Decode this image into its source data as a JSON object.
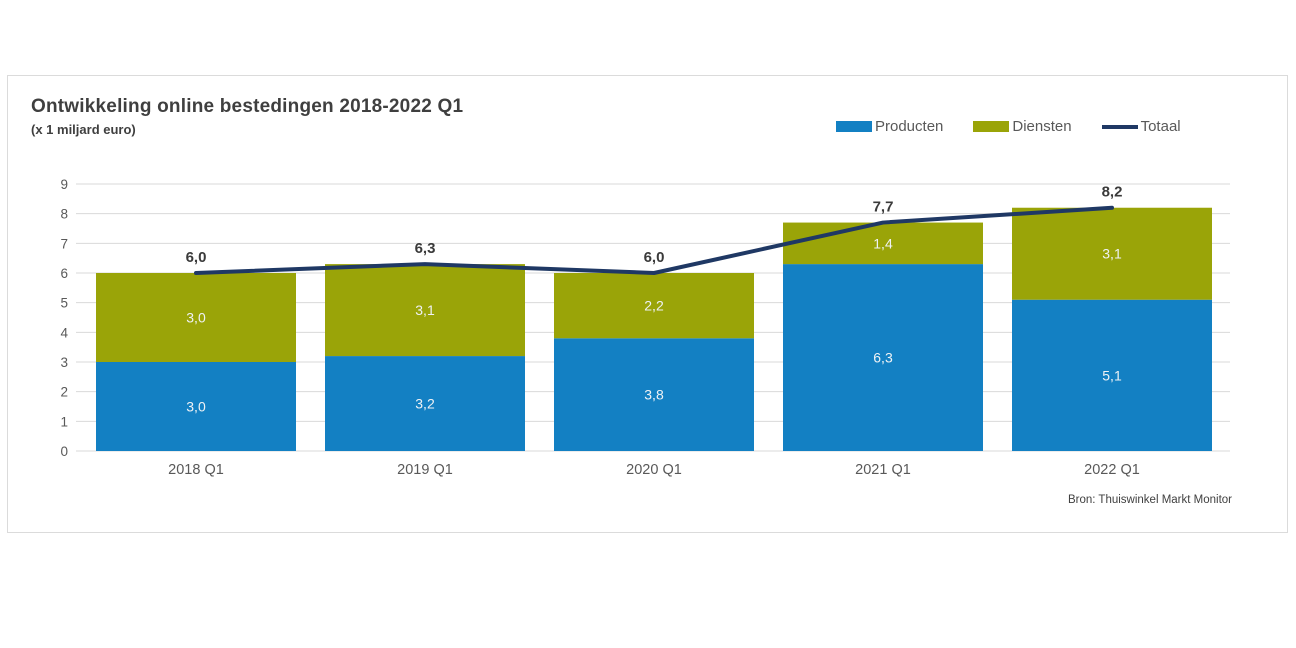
{
  "panel": {
    "title": "Ontwikkeling online bestedingen 2018-2022 Q1",
    "subtitle": "(x 1 miljard euro)",
    "source": "Bron: Thuiswinkel Markt Monitor"
  },
  "chart_data": {
    "type": "bar",
    "stacked": true,
    "grid": true,
    "legend_position": "top-right",
    "title": "Ontwikkeling online bestedingen 2018-2022 Q1",
    "subtitle": "(x 1 miljard euro)",
    "xlabel": "",
    "ylabel": "",
    "ylim": [
      0,
      9
    ],
    "ytick_step": 1,
    "categories": [
      "2018 Q1",
      "2019 Q1",
      "2020 Q1",
      "2021 Q1",
      "2022 Q1"
    ],
    "series": [
      {
        "name": "Producten",
        "type": "bar",
        "color": "#1380c3",
        "values": [
          3.0,
          3.2,
          3.8,
          6.3,
          5.1
        ],
        "labels": [
          "3,0",
          "3,2",
          "3,8",
          "6,3",
          "5,1"
        ]
      },
      {
        "name": "Diensten",
        "type": "bar",
        "color": "#9aa408",
        "values": [
          3.0,
          3.1,
          2.2,
          1.4,
          3.1
        ],
        "labels": [
          "3,0",
          "3,1",
          "2,2",
          "1,4",
          "3,1"
        ]
      },
      {
        "name": "Totaal",
        "type": "line",
        "color": "#1f3864",
        "values": [
          6.0,
          6.3,
          6.0,
          7.7,
          8.2
        ],
        "labels": [
          "6,0",
          "6,3",
          "6,0",
          "7,7",
          "8,2"
        ]
      }
    ],
    "source": "Bron: Thuiswinkel Markt Monitor",
    "colors": {
      "gridline": "#d9d9d9",
      "axis_text": "#595959",
      "total_label": "#3a3a3a",
      "segment_label": "#eff2f5",
      "panel_border": "#dbdbdb"
    }
  }
}
